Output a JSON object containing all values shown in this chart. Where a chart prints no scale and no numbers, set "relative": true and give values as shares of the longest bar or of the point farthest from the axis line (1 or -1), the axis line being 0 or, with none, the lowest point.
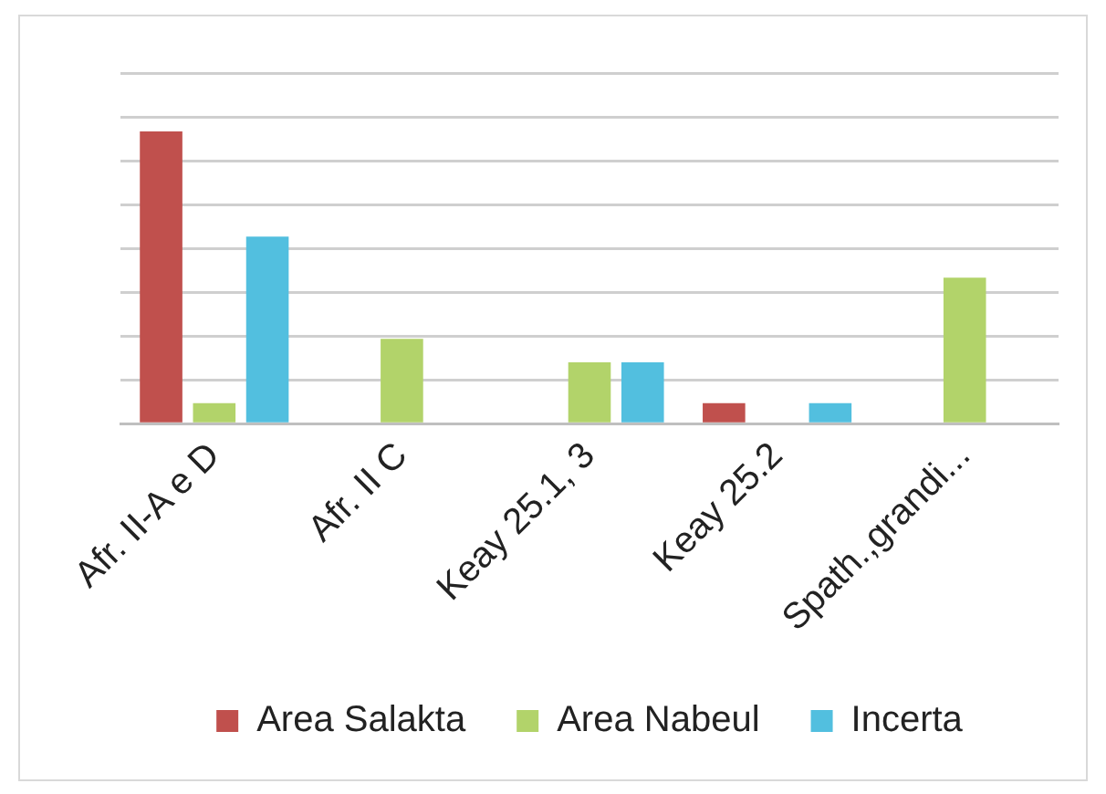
{
  "chart_data": {
    "type": "bar",
    "relative": true,
    "categories": [
      "Afr. II-A e D",
      "Afr. II C",
      "Keay 25.1, 3",
      "Keay 25.2",
      "Spath.,grandi..."
    ],
    "series": [
      {
        "name": "Area Salakta",
        "color": "#c0504d",
        "values": [
          1,
          null,
          null,
          0.07,
          null
        ]
      },
      {
        "name": "Area Nabeul",
        "color": "#b2d36a",
        "values": [
          0.07,
          0.29,
          0.21,
          null,
          0.5
        ]
      },
      {
        "name": "Incerta",
        "color": "#52bfdf",
        "values": [
          0.64,
          null,
          0.21,
          0.07,
          null
        ]
      }
    ],
    "grid": "y",
    "legend": "bottom"
  }
}
